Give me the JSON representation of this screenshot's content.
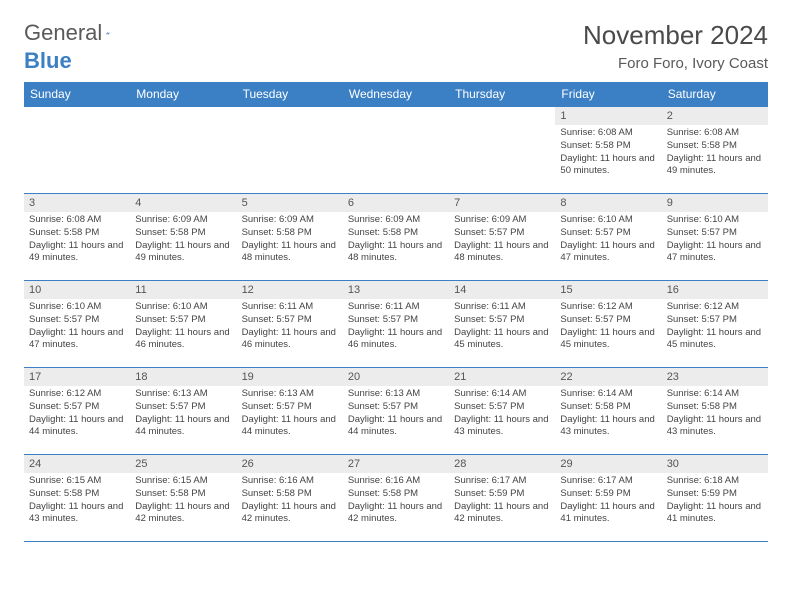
{
  "logo": {
    "word1": "General",
    "word2": "Blue",
    "sail_color": "#3b7fc4"
  },
  "title": "November 2024",
  "location": "Foro Foro, Ivory Coast",
  "colors": {
    "header_bg": "#3b7fc4",
    "header_text": "#ffffff",
    "daynum_bg": "#ececec",
    "rule": "#3b7fc4",
    "text": "#444444"
  },
  "weekdays": [
    "Sunday",
    "Monday",
    "Tuesday",
    "Wednesday",
    "Thursday",
    "Friday",
    "Saturday"
  ],
  "weeks": [
    [
      null,
      null,
      null,
      null,
      null,
      {
        "n": "1",
        "sr": "6:08 AM",
        "ss": "5:58 PM",
        "dl": "11 hours and 50 minutes."
      },
      {
        "n": "2",
        "sr": "6:08 AM",
        "ss": "5:58 PM",
        "dl": "11 hours and 49 minutes."
      }
    ],
    [
      {
        "n": "3",
        "sr": "6:08 AM",
        "ss": "5:58 PM",
        "dl": "11 hours and 49 minutes."
      },
      {
        "n": "4",
        "sr": "6:09 AM",
        "ss": "5:58 PM",
        "dl": "11 hours and 49 minutes."
      },
      {
        "n": "5",
        "sr": "6:09 AM",
        "ss": "5:58 PM",
        "dl": "11 hours and 48 minutes."
      },
      {
        "n": "6",
        "sr": "6:09 AM",
        "ss": "5:58 PM",
        "dl": "11 hours and 48 minutes."
      },
      {
        "n": "7",
        "sr": "6:09 AM",
        "ss": "5:57 PM",
        "dl": "11 hours and 48 minutes."
      },
      {
        "n": "8",
        "sr": "6:10 AM",
        "ss": "5:57 PM",
        "dl": "11 hours and 47 minutes."
      },
      {
        "n": "9",
        "sr": "6:10 AM",
        "ss": "5:57 PM",
        "dl": "11 hours and 47 minutes."
      }
    ],
    [
      {
        "n": "10",
        "sr": "6:10 AM",
        "ss": "5:57 PM",
        "dl": "11 hours and 47 minutes."
      },
      {
        "n": "11",
        "sr": "6:10 AM",
        "ss": "5:57 PM",
        "dl": "11 hours and 46 minutes."
      },
      {
        "n": "12",
        "sr": "6:11 AM",
        "ss": "5:57 PM",
        "dl": "11 hours and 46 minutes."
      },
      {
        "n": "13",
        "sr": "6:11 AM",
        "ss": "5:57 PM",
        "dl": "11 hours and 46 minutes."
      },
      {
        "n": "14",
        "sr": "6:11 AM",
        "ss": "5:57 PM",
        "dl": "11 hours and 45 minutes."
      },
      {
        "n": "15",
        "sr": "6:12 AM",
        "ss": "5:57 PM",
        "dl": "11 hours and 45 minutes."
      },
      {
        "n": "16",
        "sr": "6:12 AM",
        "ss": "5:57 PM",
        "dl": "11 hours and 45 minutes."
      }
    ],
    [
      {
        "n": "17",
        "sr": "6:12 AM",
        "ss": "5:57 PM",
        "dl": "11 hours and 44 minutes."
      },
      {
        "n": "18",
        "sr": "6:13 AM",
        "ss": "5:57 PM",
        "dl": "11 hours and 44 minutes."
      },
      {
        "n": "19",
        "sr": "6:13 AM",
        "ss": "5:57 PM",
        "dl": "11 hours and 44 minutes."
      },
      {
        "n": "20",
        "sr": "6:13 AM",
        "ss": "5:57 PM",
        "dl": "11 hours and 44 minutes."
      },
      {
        "n": "21",
        "sr": "6:14 AM",
        "ss": "5:57 PM",
        "dl": "11 hours and 43 minutes."
      },
      {
        "n": "22",
        "sr": "6:14 AM",
        "ss": "5:58 PM",
        "dl": "11 hours and 43 minutes."
      },
      {
        "n": "23",
        "sr": "6:14 AM",
        "ss": "5:58 PM",
        "dl": "11 hours and 43 minutes."
      }
    ],
    [
      {
        "n": "24",
        "sr": "6:15 AM",
        "ss": "5:58 PM",
        "dl": "11 hours and 43 minutes."
      },
      {
        "n": "25",
        "sr": "6:15 AM",
        "ss": "5:58 PM",
        "dl": "11 hours and 42 minutes."
      },
      {
        "n": "26",
        "sr": "6:16 AM",
        "ss": "5:58 PM",
        "dl": "11 hours and 42 minutes."
      },
      {
        "n": "27",
        "sr": "6:16 AM",
        "ss": "5:58 PM",
        "dl": "11 hours and 42 minutes."
      },
      {
        "n": "28",
        "sr": "6:17 AM",
        "ss": "5:59 PM",
        "dl": "11 hours and 42 minutes."
      },
      {
        "n": "29",
        "sr": "6:17 AM",
        "ss": "5:59 PM",
        "dl": "11 hours and 41 minutes."
      },
      {
        "n": "30",
        "sr": "6:18 AM",
        "ss": "5:59 PM",
        "dl": "11 hours and 41 minutes."
      }
    ]
  ],
  "labels": {
    "sunrise": "Sunrise:",
    "sunset": "Sunset:",
    "daylight": "Daylight:"
  }
}
